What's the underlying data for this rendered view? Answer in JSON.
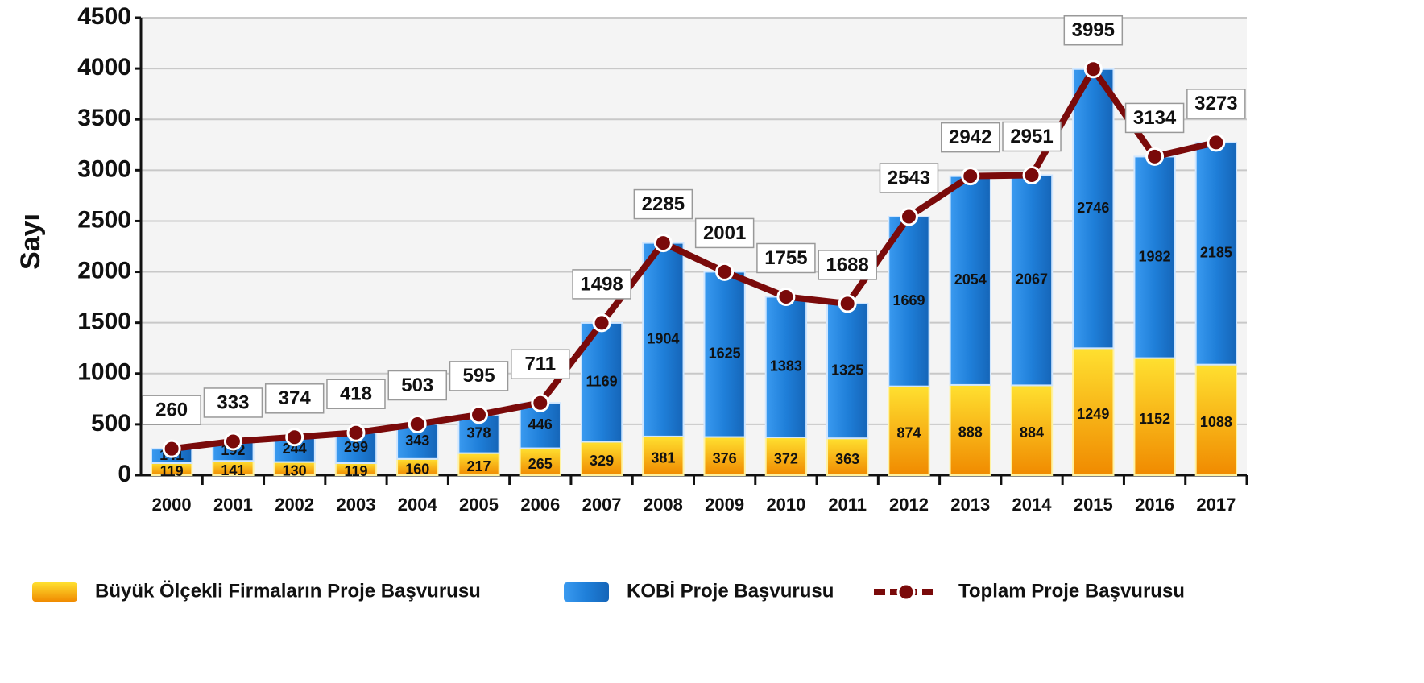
{
  "chart_data": {
    "type": "bar",
    "stacked": true,
    "ylabel": "Sayı",
    "categories": [
      "2000",
      "2001",
      "2002",
      "2003",
      "2004",
      "2005",
      "2006",
      "2007",
      "2008",
      "2009",
      "2010",
      "2011",
      "2012",
      "2013",
      "2014",
      "2015",
      "2016",
      "2017"
    ],
    "series": [
      {
        "name": "Büyük Ölçekli Firmaların Proje Başvurusu",
        "type": "bar",
        "color": "#f5b400",
        "values": [
          119,
          141,
          130,
          119,
          160,
          217,
          265,
          329,
          381,
          376,
          372,
          363,
          874,
          888,
          884,
          1249,
          1152,
          1088
        ]
      },
      {
        "name": "KOBİ Proje Başvurusu",
        "type": "bar",
        "color": "#1f7fd9",
        "values": [
          141,
          192,
          244,
          299,
          343,
          378,
          446,
          1169,
          1904,
          1625,
          1383,
          1325,
          1669,
          2054,
          2067,
          2746,
          1982,
          2185
        ]
      },
      {
        "name": "Toplam Proje Başvurusu",
        "type": "line",
        "color": "#7a0a0a",
        "values": [
          260,
          333,
          374,
          418,
          503,
          595,
          711,
          1498,
          2285,
          2001,
          1755,
          1688,
          2543,
          2942,
          2951,
          3995,
          3134,
          3273
        ]
      }
    ],
    "ylim": [
      0,
      4500
    ],
    "yticks": [
      0,
      500,
      1000,
      1500,
      2000,
      2500,
      3000,
      3500,
      4000,
      4500
    ],
    "grid": true
  }
}
